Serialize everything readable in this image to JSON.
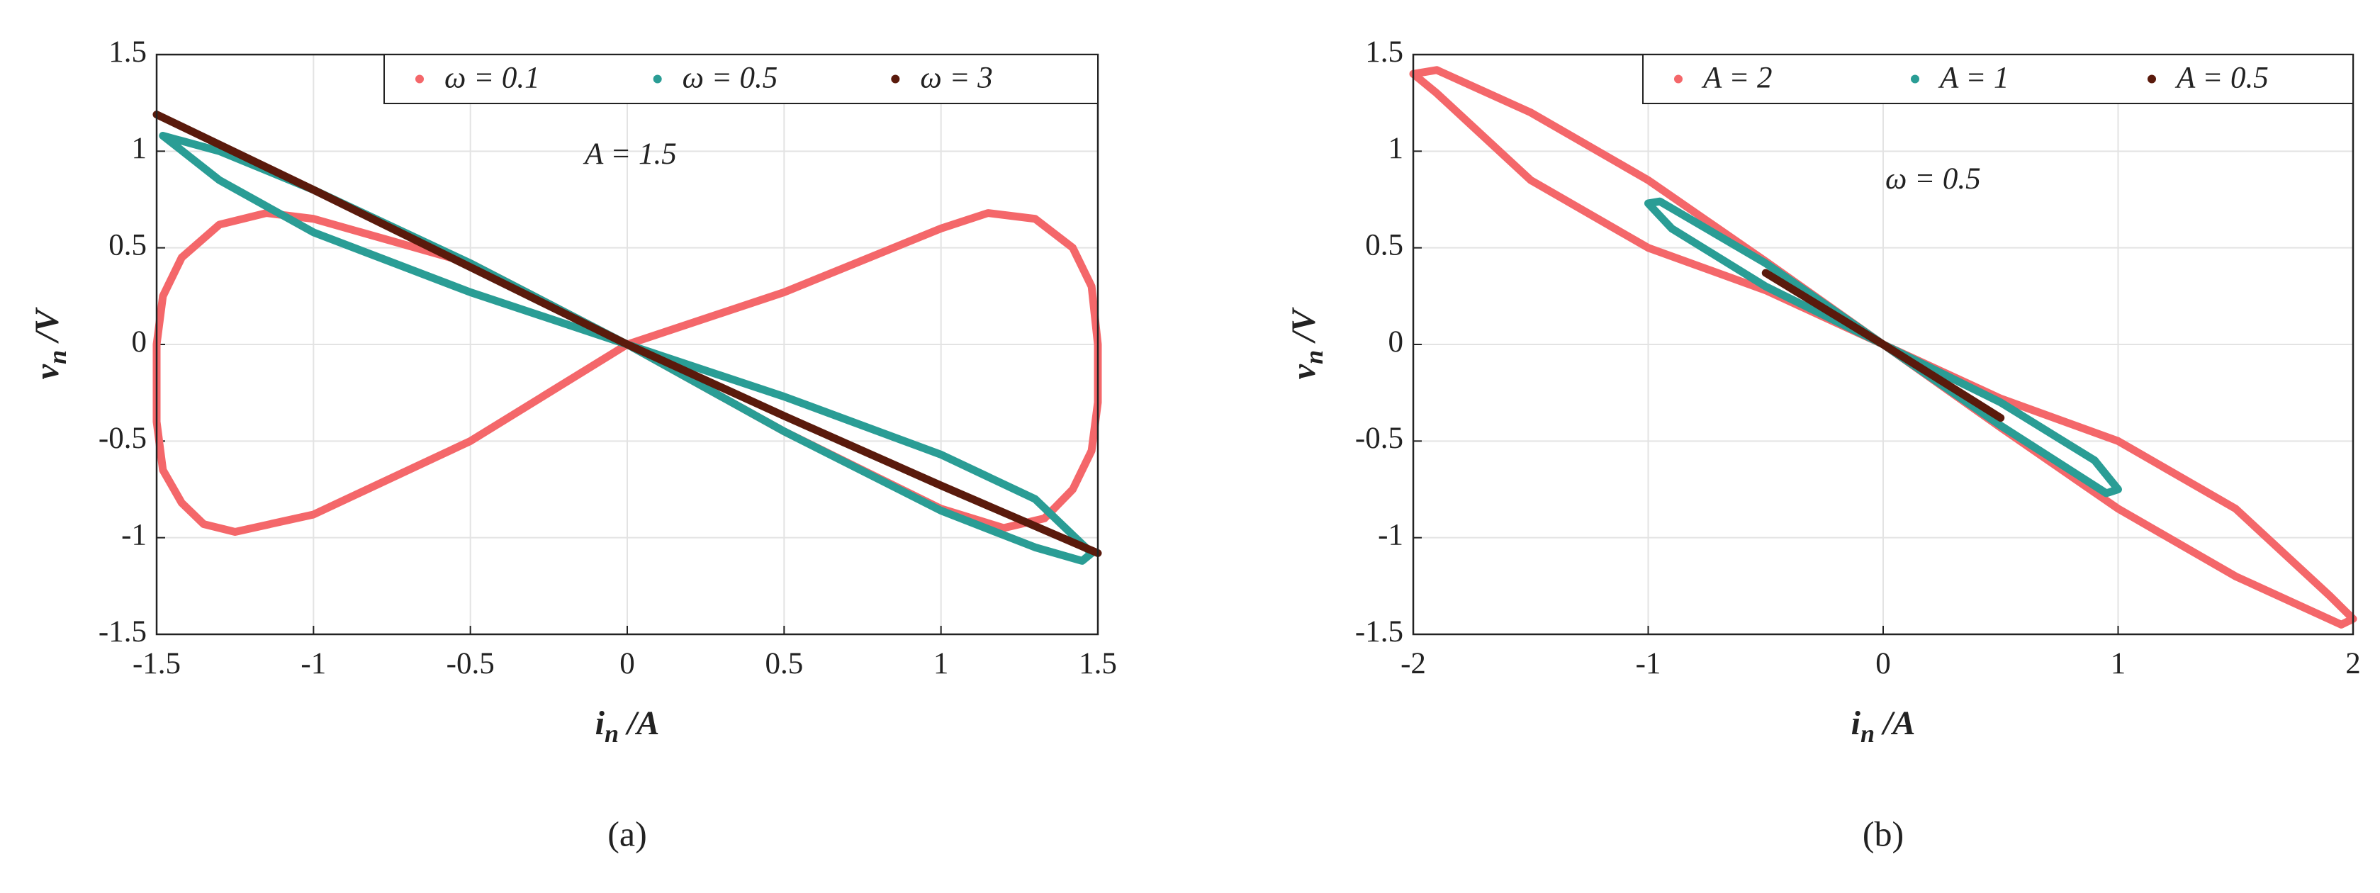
{
  "chart_data": [
    {
      "type": "line",
      "caption": "(a)",
      "annotation": "A = 1.5",
      "xlabel": {
        "main": "i",
        "subscript": "n",
        "suffix": "/A"
      },
      "ylabel": {
        "main": "v",
        "subscript": "n",
        "suffix": "/V"
      },
      "xlim": [
        -1.5,
        1.5
      ],
      "ylim": [
        -1.5,
        1.5
      ],
      "xticks": [
        -1.5,
        -1,
        -0.5,
        0,
        0.5,
        1,
        1.5
      ],
      "yticks": [
        -1.5,
        -1,
        -0.5,
        0,
        0.5,
        1,
        1.5
      ],
      "grid": true,
      "legend": "upper right",
      "series": [
        {
          "name": "ω = 0.1",
          "color": "#f4676a",
          "x": [
            0,
            0.5,
            1.0,
            1.15,
            1.3,
            1.42,
            1.48,
            1.5,
            1.5,
            1.48,
            1.42,
            1.33,
            1.2,
            1.0,
            0.5,
            0,
            -0.5,
            -1.0,
            -1.15,
            -1.3,
            -1.42,
            -1.48,
            -1.5,
            -1.5,
            -1.48,
            -1.42,
            -1.35,
            -1.25,
            -1.0,
            -0.5,
            0
          ],
          "y": [
            0,
            0.27,
            0.6,
            0.68,
            0.65,
            0.5,
            0.3,
            0.0,
            -0.3,
            -0.55,
            -0.75,
            -0.9,
            -0.95,
            -0.85,
            -0.45,
            0,
            0.42,
            0.65,
            0.68,
            0.62,
            0.45,
            0.25,
            0.0,
            -0.4,
            -0.65,
            -0.82,
            -0.93,
            -0.97,
            -0.88,
            -0.5,
            0
          ]
        },
        {
          "name": "ω = 0.5",
          "color": "#2a9d95",
          "x": [
            -1.48,
            -1.3,
            -1.0,
            -0.5,
            0,
            0.5,
            1.0,
            1.3,
            1.48,
            1.45,
            1.3,
            1.0,
            0.5,
            0,
            -0.5,
            -1.0,
            -1.3,
            -1.48
          ],
          "y": [
            1.08,
            1.0,
            0.8,
            0.42,
            0,
            -0.27,
            -0.57,
            -0.8,
            -1.08,
            -1.12,
            -1.05,
            -0.86,
            -0.45,
            0,
            0.27,
            0.58,
            0.85,
            1.08
          ]
        },
        {
          "name": "ω = 3",
          "color": "#5a1a0c",
          "x": [
            -1.5,
            -1.0,
            -0.5,
            0,
            0.5,
            1.0,
            1.5
          ],
          "y": [
            1.19,
            0.8,
            0.4,
            0,
            -0.37,
            -0.73,
            -1.08
          ]
        }
      ]
    },
    {
      "type": "line",
      "caption": "(b)",
      "annotation": "ω = 0.5",
      "xlabel": {
        "main": "i",
        "subscript": "n",
        "suffix": "/A"
      },
      "ylabel": {
        "main": "v",
        "subscript": "n",
        "suffix": "/V"
      },
      "xlim": [
        -2,
        2
      ],
      "ylim": [
        -1.5,
        1.5
      ],
      "xticks": [
        -2,
        -1,
        0,
        1,
        2
      ],
      "yticks": [
        -1.5,
        -1,
        -0.5,
        0,
        0.5,
        1,
        1.5
      ],
      "grid": true,
      "legend": "upper right",
      "series": [
        {
          "name": "A = 2",
          "color": "#f4676a",
          "x": [
            -2,
            -1.9,
            -1.5,
            -1.0,
            -0.5,
            0,
            0.5,
            1.0,
            1.5,
            1.9,
            2,
            1.95,
            1.5,
            1.0,
            0.5,
            0,
            -0.5,
            -1.0,
            -1.5,
            -1.9,
            -2
          ],
          "y": [
            1.4,
            1.42,
            1.2,
            0.85,
            0.43,
            0,
            -0.28,
            -0.5,
            -0.85,
            -1.3,
            -1.42,
            -1.45,
            -1.2,
            -0.85,
            -0.43,
            0,
            0.28,
            0.5,
            0.85,
            1.3,
            1.4
          ]
        },
        {
          "name": "A = 1",
          "color": "#2a9d95",
          "x": [
            -1,
            -0.95,
            -0.5,
            0,
            0.5,
            0.9,
            1,
            0.95,
            0.5,
            0,
            -0.5,
            -0.9,
            -1
          ],
          "y": [
            0.73,
            0.74,
            0.42,
            0,
            -0.3,
            -0.6,
            -0.75,
            -0.77,
            -0.42,
            0,
            0.3,
            0.6,
            0.73
          ]
        },
        {
          "name": "A = 0.5",
          "color": "#5a1a0c",
          "x": [
            -0.5,
            0,
            0.5
          ],
          "y": [
            0.37,
            0,
            -0.38
          ]
        }
      ]
    }
  ]
}
